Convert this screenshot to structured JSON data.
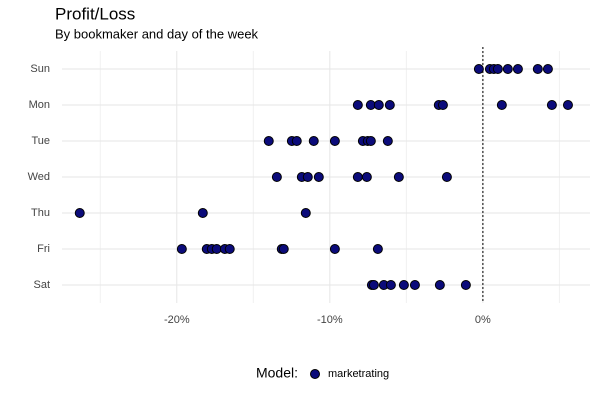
{
  "chart_data": {
    "type": "strip",
    "title": "Profit/Loss",
    "subtitle": "By bookmaker and day of the week",
    "categories": [
      "Sun",
      "Mon",
      "Tue",
      "Wed",
      "Thu",
      "Fri",
      "Sat"
    ],
    "series": [
      {
        "name": "marketrating",
        "color": "#0b0b7a",
        "values": [
          [
            -0.26,
            0.46,
            0.72,
            0.98,
            1.63,
            2.29,
            3.59,
            4.25
          ],
          [
            -8.17,
            -7.32,
            -6.8,
            -6.08,
            -2.88,
            -2.61,
            1.24,
            4.51,
            5.56
          ],
          [
            -13.99,
            -12.48,
            -12.16,
            -11.05,
            -9.67,
            -7.84,
            -7.52,
            -7.32,
            -6.21
          ],
          [
            -13.46,
            -11.83,
            -11.44,
            -10.72,
            -8.17,
            -7.58,
            -5.49,
            -2.35
          ],
          [
            -26.34,
            -18.3,
            -11.57
          ],
          [
            -19.67,
            -18.04,
            -17.71,
            -17.39,
            -16.86,
            -16.54,
            -13.14,
            -13.01,
            -9.67,
            -6.86
          ],
          [
            -7.25,
            -7.12,
            -6.47,
            -6.01,
            -5.16,
            -4.44,
            -2.81,
            -1.11
          ]
        ]
      }
    ],
    "xlim": [
      -27.5,
      7
    ],
    "xticks": [
      {
        "value": -20,
        "label": "-20%"
      },
      {
        "value": -10,
        "label": "-10%"
      },
      {
        "value": 0,
        "label": "0%"
      }
    ],
    "minor_xticks": [
      -25,
      -15,
      -5,
      5
    ],
    "vline": 0,
    "grid": true,
    "legend_title": "Model:",
    "legend_position": "bottom"
  }
}
